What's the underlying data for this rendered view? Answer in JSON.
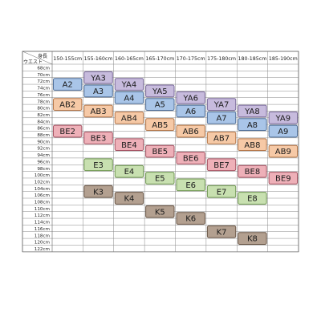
{
  "corner": {
    "height_label": "身長",
    "waist_label": "ウエスト"
  },
  "columns": [
    "150-155cm",
    "155-160cm",
    "160-165cm",
    "165-170cm",
    "170-175cm",
    "175-180cm",
    "180-185cm",
    "185-190cm"
  ],
  "rows": [
    "68cm",
    "70cm",
    "72cm",
    "74cm",
    "76cm",
    "78cm",
    "80cm",
    "82cm",
    "84cm",
    "86cm",
    "88cm",
    "90cm",
    "92cm",
    "94cm",
    "96cm",
    "98cm",
    "100cm",
    "102cm",
    "104cm",
    "106cm",
    "108cm",
    "110cm",
    "112cm",
    "114cm",
    "116cm",
    "118cm",
    "120cm",
    "122cm"
  ],
  "groups": {
    "YA": {
      "fill": "#c7bbdd",
      "stroke": "#7a6a9a"
    },
    "A": {
      "fill": "#a9c5e8",
      "stroke": "#4f6f99"
    },
    "AB": {
      "fill": "#f6c9a6",
      "stroke": "#b5774a"
    },
    "BE": {
      "fill": "#eeb0b8",
      "stroke": "#a55262"
    },
    "E": {
      "fill": "#c8e0b0",
      "stroke": "#6e9650"
    },
    "K": {
      "fill": "#b3a090",
      "stroke": "#6a5646"
    }
  },
  "sizes": [
    {
      "label": "YA3",
      "group": "YA",
      "col": 1,
      "row": 1
    },
    {
      "label": "A2",
      "group": "A",
      "col": 0,
      "row": 2
    },
    {
      "label": "YA4",
      "group": "YA",
      "col": 2,
      "row": 2
    },
    {
      "label": "A3",
      "group": "A",
      "col": 1,
      "row": 3
    },
    {
      "label": "YA5",
      "group": "YA",
      "col": 3,
      "row": 3
    },
    {
      "label": "A4",
      "group": "A",
      "col": 2,
      "row": 4
    },
    {
      "label": "YA6",
      "group": "YA",
      "col": 4,
      "row": 4
    },
    {
      "label": "AB2",
      "group": "AB",
      "col": 0,
      "row": 5
    },
    {
      "label": "A5",
      "group": "A",
      "col": 3,
      "row": 5
    },
    {
      "label": "YA7",
      "group": "YA",
      "col": 5,
      "row": 5
    },
    {
      "label": "AB3",
      "group": "AB",
      "col": 1,
      "row": 6
    },
    {
      "label": "A6",
      "group": "A",
      "col": 4,
      "row": 6
    },
    {
      "label": "YA8",
      "group": "YA",
      "col": 6,
      "row": 6
    },
    {
      "label": "AB4",
      "group": "AB",
      "col": 2,
      "row": 7
    },
    {
      "label": "A7",
      "group": "A",
      "col": 5,
      "row": 7
    },
    {
      "label": "YA9",
      "group": "YA",
      "col": 7,
      "row": 7
    },
    {
      "label": "AB5",
      "group": "AB",
      "col": 3,
      "row": 8
    },
    {
      "label": "A8",
      "group": "A",
      "col": 6,
      "row": 8
    },
    {
      "label": "BE2",
      "group": "BE",
      "col": 0,
      "row": 9
    },
    {
      "label": "AB6",
      "group": "AB",
      "col": 4,
      "row": 9
    },
    {
      "label": "A9",
      "group": "A",
      "col": 7,
      "row": 9
    },
    {
      "label": "BE3",
      "group": "BE",
      "col": 1,
      "row": 10
    },
    {
      "label": "AB7",
      "group": "AB",
      "col": 5,
      "row": 10
    },
    {
      "label": "BE4",
      "group": "BE",
      "col": 2,
      "row": 11
    },
    {
      "label": "AB8",
      "group": "AB",
      "col": 6,
      "row": 11
    },
    {
      "label": "BE5",
      "group": "BE",
      "col": 3,
      "row": 12
    },
    {
      "label": "AB9",
      "group": "AB",
      "col": 7,
      "row": 12
    },
    {
      "label": "BE6",
      "group": "BE",
      "col": 4,
      "row": 13
    },
    {
      "label": "E3",
      "group": "E",
      "col": 1,
      "row": 14
    },
    {
      "label": "BE7",
      "group": "BE",
      "col": 5,
      "row": 14
    },
    {
      "label": "E4",
      "group": "E",
      "col": 2,
      "row": 15
    },
    {
      "label": "BE8",
      "group": "BE",
      "col": 6,
      "row": 15
    },
    {
      "label": "E5",
      "group": "E",
      "col": 3,
      "row": 16
    },
    {
      "label": "BE9",
      "group": "BE",
      "col": 7,
      "row": 16
    },
    {
      "label": "E6",
      "group": "E",
      "col": 4,
      "row": 17
    },
    {
      "label": "K3",
      "group": "K",
      "col": 1,
      "row": 18
    },
    {
      "label": "E7",
      "group": "E",
      "col": 5,
      "row": 18
    },
    {
      "label": "K4",
      "group": "K",
      "col": 2,
      "row": 19
    },
    {
      "label": "E8",
      "group": "E",
      "col": 6,
      "row": 19
    },
    {
      "label": "K5",
      "group": "K",
      "col": 3,
      "row": 21
    },
    {
      "label": "K6",
      "group": "K",
      "col": 4,
      "row": 22
    },
    {
      "label": "K7",
      "group": "K",
      "col": 5,
      "row": 24
    },
    {
      "label": "K8",
      "group": "K",
      "col": 6,
      "row": 25
    }
  ]
}
